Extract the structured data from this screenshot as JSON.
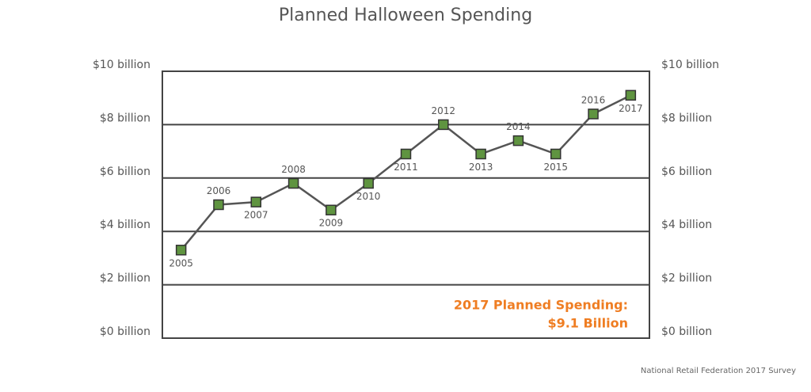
{
  "chart_data": {
    "type": "line",
    "title": "Planned Halloween Spending",
    "categories": [
      "2005",
      "2006",
      "2007",
      "2008",
      "2009",
      "2010",
      "2011",
      "2012",
      "2013",
      "2014",
      "2015",
      "2016",
      "2017"
    ],
    "values": [
      3.3,
      5.0,
      5.1,
      5.8,
      4.8,
      5.8,
      6.9,
      8.0,
      6.9,
      7.4,
      6.9,
      8.4,
      9.1
    ],
    "color": "#5f9440",
    "line_color": "#555555",
    "ylim": [
      0,
      10
    ],
    "yticks": [
      {
        "value": 0,
        "label": "$0 billion"
      },
      {
        "value": 2,
        "label": "$2 billion"
      },
      {
        "value": 4,
        "label": "$4 billion"
      },
      {
        "value": 6,
        "label": "$6 billion"
      },
      {
        "value": 8,
        "label": "$8 billion"
      },
      {
        "value": 10,
        "label": "$10 billion"
      }
    ],
    "grid": true,
    "annotation": [
      "2017 Planned Spending:",
      "$9.1 Billion"
    ],
    "source": "National Retail Federation 2017 Survey"
  }
}
